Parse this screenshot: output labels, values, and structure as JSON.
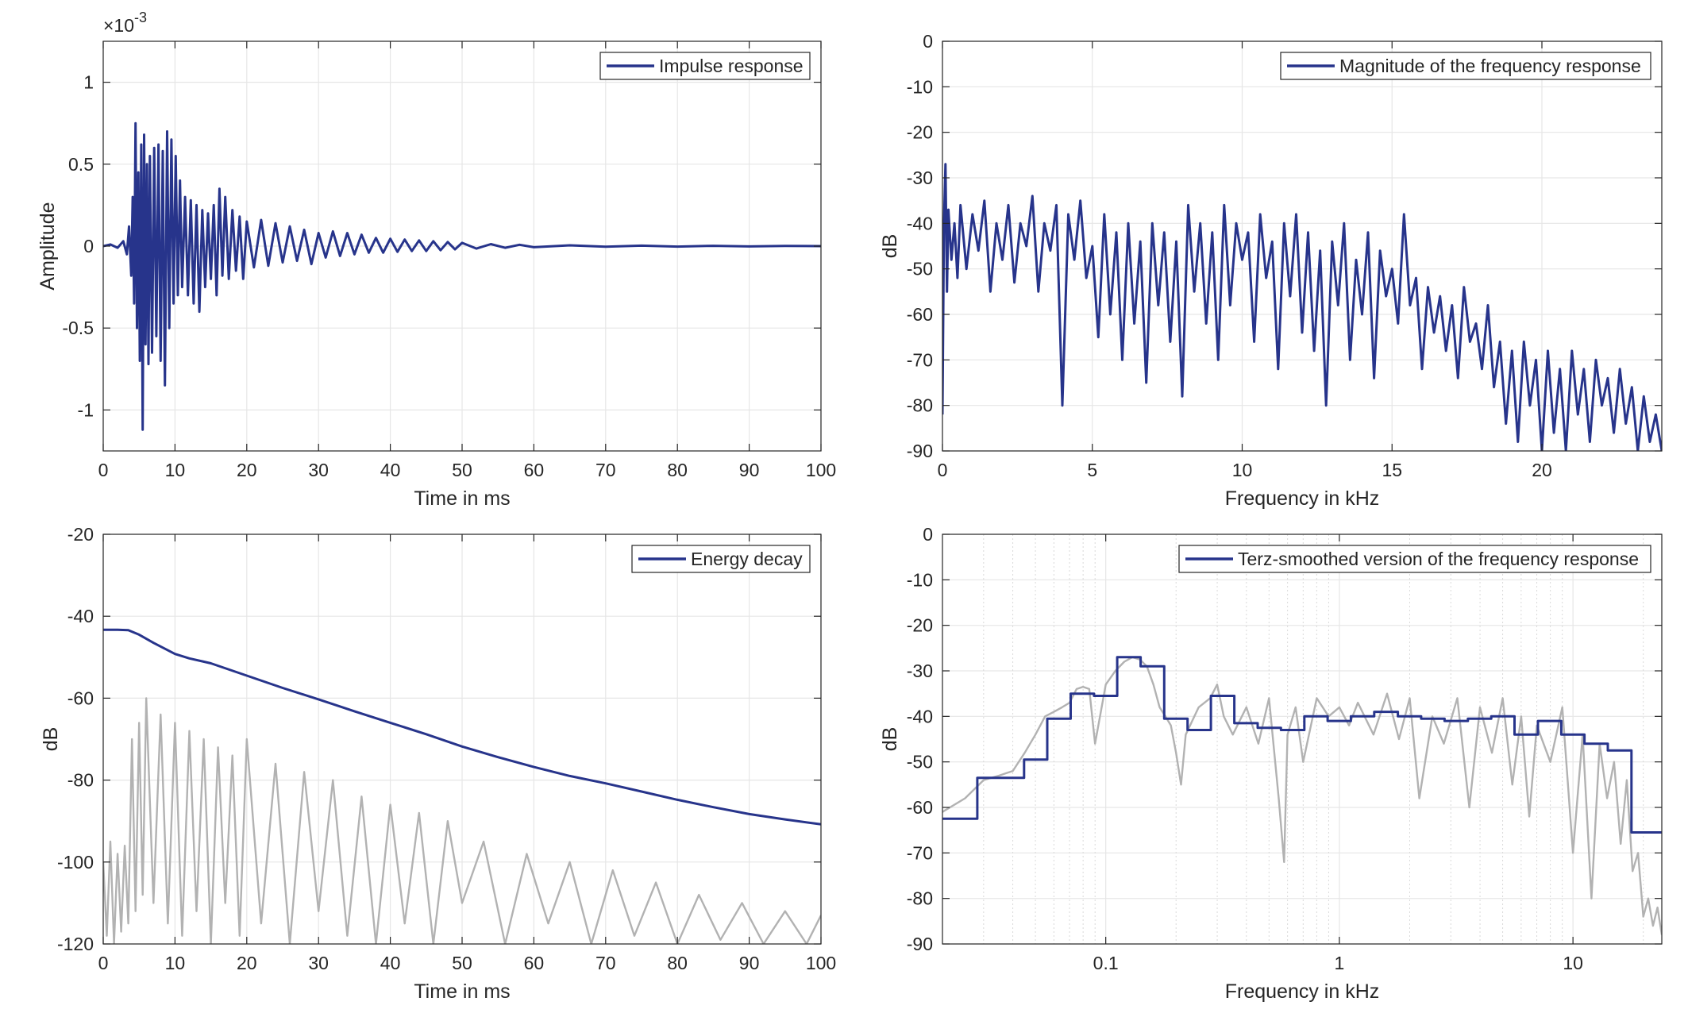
{
  "figure": {
    "background": "#ffffff",
    "colors": {
      "primary": "#27348b",
      "secondary": "#b2b2b2",
      "grid": "#e6e6e6",
      "axis": "#262626"
    }
  },
  "chart_data": [
    {
      "id": "impulse",
      "type": "line",
      "title": "",
      "xlabel": "Time in ms",
      "ylabel": "Amplitude",
      "exponent_label": "×10",
      "exponent_sup": "-3",
      "xlim": [
        0,
        100
      ],
      "ylim": [
        -1.25,
        1.25
      ],
      "xticks": [
        0,
        10,
        20,
        30,
        40,
        50,
        60,
        70,
        80,
        90,
        100
      ],
      "xtick_labels": [
        "0",
        "10",
        "20",
        "30",
        "40",
        "50",
        "60",
        "70",
        "80",
        "90",
        "100"
      ],
      "yticks": [
        1,
        0.5,
        0,
        -0.5,
        -1
      ],
      "ytick_labels": [
        "1",
        "0.5",
        "0",
        "-0.5",
        "-1"
      ],
      "xscale": "linear",
      "grid": true,
      "legend": {
        "placement": "top-right",
        "entries": [
          "Impulse response"
        ]
      },
      "series": [
        {
          "name": "Impulse response",
          "color": "#27348b",
          "x": [
            0,
            1,
            2,
            2.8,
            3.3,
            3.6,
            3.9,
            4.1,
            4.3,
            4.5,
            4.7,
            4.9,
            5.1,
            5.3,
            5.5,
            5.7,
            5.9,
            6.1,
            6.3,
            6.5,
            6.8,
            7.1,
            7.4,
            7.7,
            8,
            8.3,
            8.6,
            8.9,
            9.2,
            9.5,
            9.8,
            10.1,
            10.4,
            10.7,
            11,
            11.4,
            11.8,
            12.2,
            12.6,
            13,
            13.4,
            13.8,
            14.2,
            14.6,
            15,
            15.4,
            15.8,
            16.2,
            16.6,
            17,
            17.5,
            18,
            18.5,
            19,
            19.5,
            20,
            21,
            22,
            23,
            24,
            25,
            26,
            27,
            28,
            29,
            30,
            31,
            32,
            33,
            34,
            35,
            36,
            37,
            38,
            39,
            40,
            41,
            42,
            43,
            44,
            45,
            46,
            47,
            48,
            49,
            50,
            52,
            54,
            56,
            58,
            60,
            65,
            70,
            75,
            80,
            85,
            90,
            95,
            100
          ],
          "y": [
            0,
            0.01,
            -0.01,
            0.03,
            -0.05,
            0.12,
            -0.18,
            0.3,
            -0.35,
            0.75,
            -0.5,
            0.45,
            -0.7,
            0.62,
            -1.12,
            0.68,
            -0.6,
            0.5,
            -0.72,
            0.55,
            -0.65,
            0.6,
            -0.55,
            0.62,
            -0.7,
            0.58,
            -0.85,
            0.7,
            -0.5,
            0.65,
            -0.35,
            0.55,
            -0.3,
            0.4,
            -0.25,
            0.3,
            -0.3,
            0.28,
            -0.35,
            0.25,
            -0.4,
            0.22,
            -0.25,
            0.2,
            -0.2,
            0.25,
            -0.3,
            0.35,
            -0.18,
            0.3,
            -0.2,
            0.22,
            -0.15,
            0.18,
            -0.2,
            0.15,
            -0.13,
            0.16,
            -0.12,
            0.14,
            -0.1,
            0.12,
            -0.09,
            0.1,
            -0.11,
            0.08,
            -0.07,
            0.09,
            -0.06,
            0.08,
            -0.05,
            0.07,
            -0.04,
            0.05,
            -0.04,
            0.045,
            -0.035,
            0.04,
            -0.03,
            0.035,
            -0.03,
            0.03,
            -0.025,
            0.025,
            -0.02,
            0.02,
            -0.015,
            0.012,
            -0.01,
            0.008,
            -0.007,
            0.005,
            -0.004,
            0.003,
            -0.003,
            0.002,
            -0.002,
            0.001,
            0
          ]
        }
      ]
    },
    {
      "id": "magnitude",
      "type": "line",
      "title": "",
      "xlabel": "Frequency in kHz",
      "ylabel": "dB",
      "xlim": [
        0,
        24
      ],
      "ylim": [
        -90,
        0
      ],
      "xticks": [
        0,
        5,
        10,
        15,
        20
      ],
      "xtick_labels": [
        "0",
        "5",
        "10",
        "15",
        "20"
      ],
      "yticks": [
        0,
        -10,
        -20,
        -30,
        -40,
        -50,
        -60,
        -70,
        -80,
        -90
      ],
      "ytick_labels": [
        "0",
        "-10",
        "-20",
        "-30",
        "-40",
        "-50",
        "-60",
        "-70",
        "-80",
        "-90"
      ],
      "xscale": "linear",
      "grid": true,
      "legend": {
        "placement": "top-right",
        "entries": [
          "Magnitude of the frequency response"
        ]
      },
      "series": [
        {
          "name": "Magnitude of the frequency response",
          "color": "#27348b",
          "x": [
            0,
            0.05,
            0.1,
            0.15,
            0.2,
            0.3,
            0.4,
            0.5,
            0.6,
            0.8,
            1,
            1.2,
            1.4,
            1.6,
            1.8,
            2,
            2.2,
            2.4,
            2.6,
            2.8,
            3,
            3.2,
            3.4,
            3.6,
            3.8,
            4,
            4.2,
            4.4,
            4.6,
            4.8,
            5,
            5.2,
            5.4,
            5.6,
            5.8,
            6,
            6.2,
            6.4,
            6.6,
            6.8,
            7,
            7.2,
            7.4,
            7.6,
            7.8,
            8,
            8.2,
            8.4,
            8.6,
            8.8,
            9,
            9.2,
            9.4,
            9.6,
            9.8,
            10,
            10.2,
            10.4,
            10.6,
            10.8,
            11,
            11.2,
            11.4,
            11.6,
            11.8,
            12,
            12.2,
            12.4,
            12.6,
            12.8,
            13,
            13.2,
            13.4,
            13.6,
            13.8,
            14,
            14.2,
            14.4,
            14.6,
            14.8,
            15,
            15.2,
            15.4,
            15.6,
            15.8,
            16,
            16.2,
            16.4,
            16.6,
            16.8,
            17,
            17.2,
            17.4,
            17.6,
            17.8,
            18,
            18.2,
            18.4,
            18.6,
            18.8,
            19,
            19.2,
            19.4,
            19.6,
            19.8,
            20,
            20.2,
            20.4,
            20.6,
            20.8,
            21,
            21.2,
            21.4,
            21.6,
            21.8,
            22,
            22.2,
            22.4,
            22.6,
            22.8,
            23,
            23.2,
            23.4,
            23.6,
            23.8,
            24
          ],
          "y": [
            -82,
            -40,
            -27,
            -55,
            -37,
            -48,
            -40,
            -52,
            -36,
            -50,
            -38,
            -46,
            -35,
            -55,
            -40,
            -48,
            -36,
            -53,
            -40,
            -45,
            -34,
            -55,
            -40,
            -46,
            -36,
            -80,
            -38,
            -48,
            -35,
            -52,
            -45,
            -65,
            -38,
            -60,
            -42,
            -70,
            -40,
            -62,
            -44,
            -75,
            -40,
            -58,
            -42,
            -66,
            -44,
            -78,
            -36,
            -55,
            -40,
            -62,
            -42,
            -70,
            -36,
            -58,
            -40,
            -48,
            -42,
            -66,
            -38,
            -52,
            -44,
            -72,
            -40,
            -56,
            -38,
            -64,
            -42,
            -68,
            -46,
            -80,
            -44,
            -58,
            -40,
            -70,
            -48,
            -60,
            -42,
            -74,
            -46,
            -56,
            -50,
            -62,
            -38,
            -58,
            -52,
            -72,
            -54,
            -64,
            -56,
            -68,
            -58,
            -74,
            -54,
            -66,
            -62,
            -72,
            -58,
            -76,
            -66,
            -84,
            -68,
            -88,
            -66,
            -80,
            -70,
            -92,
            -68,
            -86,
            -72,
            -90,
            -68,
            -82,
            -72,
            -88,
            -70,
            -80,
            -74,
            -86,
            -72,
            -84,
            -76,
            -90,
            -78,
            -88,
            -82,
            -90
          ]
        }
      ]
    },
    {
      "id": "energy",
      "type": "line",
      "title": "",
      "xlabel": "Time in ms",
      "ylabel": "dB",
      "xlim": [
        0,
        100
      ],
      "ylim": [
        -120,
        -20
      ],
      "xticks": [
        0,
        10,
        20,
        30,
        40,
        50,
        60,
        70,
        80,
        90,
        100
      ],
      "xtick_labels": [
        "0",
        "10",
        "20",
        "30",
        "40",
        "50",
        "60",
        "70",
        "80",
        "90",
        "100"
      ],
      "yticks": [
        -20,
        -40,
        -60,
        -80,
        -100,
        -120
      ],
      "ytick_labels": [
        "-20",
        "-40",
        "-60",
        "-80",
        "-100",
        "-120"
      ],
      "xscale": "linear",
      "grid": true,
      "legend": {
        "placement": "top-right",
        "entries": [
          "Energy decay"
        ]
      },
      "series": [
        {
          "name": "Energy decay",
          "color": "#27348b",
          "x": [
            0,
            2,
            3.5,
            5,
            7,
            10,
            12,
            15,
            20,
            25,
            30,
            35,
            40,
            45,
            50,
            55,
            60,
            65,
            70,
            75,
            80,
            85,
            90,
            95,
            100
          ],
          "y": [
            -43.3,
            -43.3,
            -43.4,
            -44.5,
            -46.5,
            -49.2,
            -50.3,
            -51.5,
            -54.5,
            -57.5,
            -60.3,
            -63.2,
            -66,
            -68.8,
            -71.8,
            -74.4,
            -76.8,
            -79,
            -80.8,
            -82.8,
            -84.8,
            -86.6,
            -88.3,
            -89.6,
            -90.8
          ]
        },
        {
          "color": "#b2b2b2",
          "x": [
            0,
            0.5,
            1,
            1.5,
            2,
            2.5,
            3,
            3.5,
            4,
            4.5,
            5,
            5.5,
            6,
            7,
            8,
            9,
            10,
            11,
            12,
            13,
            14,
            15,
            16,
            17,
            18,
            19,
            20,
            22,
            24,
            26,
            28,
            30,
            32,
            34,
            36,
            38,
            40,
            42,
            44,
            46,
            48,
            50,
            53,
            56,
            59,
            62,
            65,
            68,
            71,
            74,
            77,
            80,
            83,
            86,
            89,
            92,
            95,
            98,
            100
          ],
          "y": [
            -100,
            -118,
            -95,
            -120,
            -98,
            -117,
            -96,
            -115,
            -70,
            -112,
            -66,
            -108,
            -60,
            -110,
            -64,
            -115,
            -66,
            -118,
            -68,
            -112,
            -70,
            -120,
            -72,
            -110,
            -74,
            -118,
            -70,
            -115,
            -76,
            -120,
            -78,
            -112,
            -80,
            -118,
            -84,
            -120,
            -86,
            -115,
            -88,
            -120,
            -90,
            -110,
            -95,
            -120,
            -98,
            -115,
            -100,
            -120,
            -102,
            -118,
            -105,
            -120,
            -108,
            -119,
            -110,
            -120,
            -112,
            -120,
            -113
          ]
        }
      ]
    },
    {
      "id": "terz",
      "type": "line",
      "title": "",
      "xlabel": "Frequency in kHz",
      "ylabel": "dB",
      "xlim": [
        0.02,
        24
      ],
      "ylim": [
        -90,
        0
      ],
      "xticks": [
        0.1,
        1,
        10
      ],
      "xtick_labels": [
        "0.1",
        "1",
        "10"
      ],
      "yticks": [
        0,
        -10,
        -20,
        -30,
        -40,
        -50,
        -60,
        -70,
        -80,
        -90
      ],
      "ytick_labels": [
        "0",
        "-10",
        "-20",
        "-30",
        "-40",
        "-50",
        "-60",
        "-70",
        "-80",
        "-90"
      ],
      "xscale": "log",
      "grid": true,
      "legend": {
        "placement": "top-right",
        "entries": [
          "Terz-smoothed version of the frequency response"
        ]
      },
      "series": [
        {
          "name": "Terz-smoothed version of the frequency response",
          "color": "#27348b",
          "step": true,
          "x": [
            0.02,
            0.0282,
            0.0447,
            0.0562,
            0.0708,
            0.0891,
            0.112,
            0.141,
            0.178,
            0.224,
            0.282,
            0.355,
            0.447,
            0.562,
            0.708,
            0.891,
            1.12,
            1.41,
            1.78,
            2.24,
            2.82,
            3.55,
            4.47,
            5.62,
            7.08,
            8.91,
            11.2,
            14.1,
            17.8,
            24
          ],
          "y": [
            -62.5,
            -53.5,
            -49.5,
            -40.5,
            -35,
            -35.5,
            -27,
            -29,
            -40.5,
            -43,
            -35.5,
            -41.5,
            -42.5,
            -43,
            -40,
            -41,
            -40,
            -39,
            -40,
            -40.5,
            -41,
            -40.5,
            -40,
            -44,
            -41,
            -44,
            -46,
            -47.5,
            -65.5,
            -65.5
          ]
        },
        {
          "color": "#b2b2b2",
          "x": [
            0.02,
            0.025,
            0.03,
            0.035,
            0.04,
            0.045,
            0.05,
            0.055,
            0.06,
            0.065,
            0.07,
            0.075,
            0.08,
            0.085,
            0.09,
            0.1,
            0.11,
            0.12,
            0.13,
            0.14,
            0.15,
            0.16,
            0.17,
            0.18,
            0.19,
            0.2,
            0.21,
            0.22,
            0.25,
            0.28,
            0.3,
            0.32,
            0.35,
            0.4,
            0.45,
            0.5,
            0.55,
            0.58,
            0.6,
            0.65,
            0.7,
            0.8,
            0.9,
            1,
            1.1,
            1.2,
            1.4,
            1.6,
            1.8,
            2,
            2.2,
            2.5,
            2.8,
            3.2,
            3.6,
            4,
            4.5,
            5,
            5.5,
            6,
            6.5,
            7,
            8,
            9,
            10,
            11,
            12,
            13,
            14,
            15,
            16,
            17,
            18,
            19,
            20,
            21,
            22,
            23,
            24
          ],
          "y": [
            -61,
            -58,
            -54,
            -53,
            -52,
            -48,
            -44,
            -40,
            -39,
            -38,
            -37,
            -34,
            -33.5,
            -34,
            -46,
            -33,
            -30,
            -28,
            -27,
            -27.5,
            -29,
            -33,
            -38,
            -40,
            -42,
            -48,
            -55,
            -44,
            -38,
            -36,
            -33,
            -40,
            -44,
            -38,
            -46,
            -36,
            -58,
            -72,
            -44,
            -38,
            -50,
            -36,
            -40,
            -38,
            -42,
            -37,
            -44,
            -35,
            -45,
            -36,
            -58,
            -40,
            -46,
            -36,
            -60,
            -38,
            -48,
            -36,
            -55,
            -40,
            -62,
            -42,
            -50,
            -38,
            -70,
            -44,
            -80,
            -46,
            -58,
            -50,
            -68,
            -54,
            -74,
            -70,
            -84,
            -80,
            -86,
            -82,
            -88
          ]
        }
      ]
    }
  ]
}
